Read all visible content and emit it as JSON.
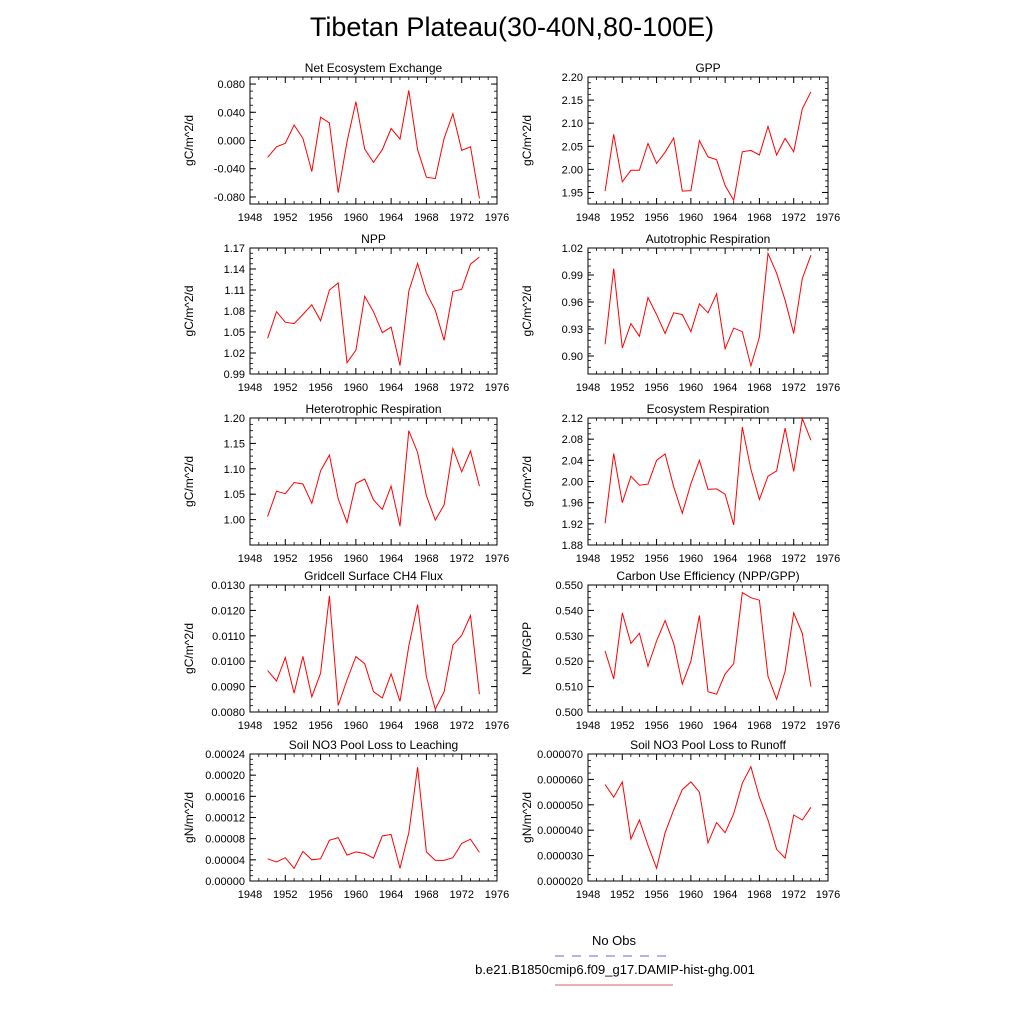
{
  "title": "Tibetan Plateau(30-40N,80-100E)",
  "legend": {
    "entries": [
      {
        "label": "No Obs",
        "color": "#6a6ad0",
        "dash": true
      },
      {
        "label": "b.e21.B1850cmip6.f09_g17.DAMIP-hist-ghg.001",
        "color": "#e06060",
        "dash": false
      }
    ]
  },
  "series_color": "#ff0000",
  "chart_data": [
    {
      "type": "line",
      "title": "Net Ecosystem Exchange",
      "ylabel": "gC/m^2/d",
      "xlim": [
        1948,
        1976
      ],
      "xticks": [
        1948,
        1952,
        1956,
        1960,
        1964,
        1968,
        1972,
        1976
      ],
      "xtick_labels": [
        "1948",
        "1952",
        "1956",
        "1960",
        "1964",
        "1968",
        "1972",
        "1976"
      ],
      "ylim": [
        -0.09,
        0.09
      ],
      "yticks": [
        -0.08,
        -0.04,
        0.0,
        0.04,
        0.08
      ],
      "ytick_labels": [
        "-0.080",
        "-0.040",
        "0.000",
        "0.040",
        "0.080"
      ],
      "x": [
        1950,
        1951,
        1952,
        1953,
        1954,
        1955,
        1956,
        1957,
        1958,
        1959,
        1960,
        1961,
        1962,
        1963,
        1964,
        1965,
        1966,
        1967,
        1968,
        1969,
        1970,
        1971,
        1972,
        1973,
        1974
      ],
      "y": [
        -0.024,
        -0.009,
        -0.004,
        0.022,
        0.003,
        -0.044,
        0.033,
        0.025,
        -0.074,
        -0.002,
        0.055,
        -0.012,
        -0.031,
        -0.013,
        0.017,
        0.002,
        0.071,
        -0.013,
        -0.052,
        -0.054,
        0.003,
        0.038,
        -0.014,
        -0.009,
        -0.082
      ]
    },
    {
      "type": "line",
      "title": "GPP",
      "ylabel": "gC/m^2/d",
      "xlim": [
        1948,
        1976
      ],
      "xticks": [
        1948,
        1952,
        1956,
        1960,
        1964,
        1968,
        1972,
        1976
      ],
      "xtick_labels": [
        "1948",
        "1952",
        "1956",
        "1960",
        "1964",
        "1968",
        "1972",
        "1976"
      ],
      "ylim": [
        1.925,
        2.2
      ],
      "yticks": [
        1.95,
        2.0,
        2.05,
        2.1,
        2.15,
        2.2
      ],
      "ytick_labels": [
        "1.95",
        "2.00",
        "2.05",
        "2.10",
        "2.15",
        "2.20"
      ],
      "x": [
        1950,
        1951,
        1952,
        1953,
        1954,
        1955,
        1956,
        1957,
        1958,
        1959,
        1960,
        1961,
        1962,
        1963,
        1964,
        1965,
        1966,
        1967,
        1968,
        1969,
        1970,
        1971,
        1972,
        1973,
        1974
      ],
      "y": [
        1.953,
        2.076,
        1.973,
        1.998,
        1.998,
        2.056,
        2.013,
        2.037,
        2.068,
        1.953,
        1.954,
        2.062,
        2.027,
        2.021,
        1.965,
        1.933,
        2.038,
        2.041,
        2.031,
        2.093,
        2.031,
        2.067,
        2.038,
        2.131,
        2.168
      ]
    },
    {
      "type": "line",
      "title": "NPP",
      "ylabel": "gC/m^2/d",
      "xlim": [
        1948,
        1976
      ],
      "xticks": [
        1948,
        1952,
        1956,
        1960,
        1964,
        1968,
        1972,
        1976
      ],
      "xtick_labels": [
        "1948",
        "1952",
        "1956",
        "1960",
        "1964",
        "1968",
        "1972",
        "1976"
      ],
      "ylim": [
        0.99,
        1.17
      ],
      "yticks": [
        0.99,
        1.02,
        1.05,
        1.08,
        1.11,
        1.14,
        1.17
      ],
      "ytick_labels": [
        "0.99",
        "1.02",
        "1.05",
        "1.08",
        "1.11",
        "1.14",
        "1.17"
      ],
      "x": [
        1950,
        1951,
        1952,
        1953,
        1954,
        1955,
        1956,
        1957,
        1958,
        1959,
        1960,
        1961,
        1962,
        1963,
        1964,
        1965,
        1966,
        1967,
        1968,
        1969,
        1970,
        1971,
        1972,
        1973,
        1974
      ],
      "y": [
        1.041,
        1.079,
        1.064,
        1.062,
        1.075,
        1.089,
        1.066,
        1.11,
        1.12,
        1.006,
        1.024,
        1.101,
        1.079,
        1.049,
        1.057,
        1.002,
        1.108,
        1.148,
        1.106,
        1.081,
        1.038,
        1.108,
        1.111,
        1.147,
        1.157
      ]
    },
    {
      "type": "line",
      "title": "Autotrophic Respiration",
      "ylabel": "gC/m^2/d",
      "xlim": [
        1948,
        1976
      ],
      "xticks": [
        1948,
        1952,
        1956,
        1960,
        1964,
        1968,
        1972,
        1976
      ],
      "xtick_labels": [
        "1948",
        "1952",
        "1956",
        "1960",
        "1964",
        "1968",
        "1972",
        "1976"
      ],
      "ylim": [
        0.88,
        1.02
      ],
      "yticks": [
        0.9,
        0.93,
        0.96,
        0.99,
        1.02
      ],
      "ytick_labels": [
        "0.90",
        "0.93",
        "0.96",
        "0.99",
        "1.02"
      ],
      "x": [
        1950,
        1951,
        1952,
        1953,
        1954,
        1955,
        1956,
        1957,
        1958,
        1959,
        1960,
        1961,
        1962,
        1963,
        1964,
        1965,
        1966,
        1967,
        1968,
        1969,
        1970,
        1971,
        1972,
        1973,
        1974
      ],
      "y": [
        0.913,
        0.997,
        0.909,
        0.936,
        0.922,
        0.965,
        0.946,
        0.925,
        0.948,
        0.946,
        0.927,
        0.958,
        0.948,
        0.969,
        0.908,
        0.931,
        0.927,
        0.889,
        0.921,
        1.014,
        0.992,
        0.962,
        0.925,
        0.986,
        1.012
      ]
    },
    {
      "type": "line",
      "title": "Heterotrophic Respiration",
      "ylabel": "gC/m^2/d",
      "xlim": [
        1948,
        1976
      ],
      "xticks": [
        1948,
        1952,
        1956,
        1960,
        1964,
        1968,
        1972,
        1976
      ],
      "xtick_labels": [
        "1948",
        "1952",
        "1956",
        "1960",
        "1964",
        "1968",
        "1972",
        "1976"
      ],
      "ylim": [
        0.95,
        1.2
      ],
      "yticks": [
        1.0,
        1.05,
        1.1,
        1.15,
        1.2
      ],
      "ytick_labels": [
        "1.00",
        "1.05",
        "1.10",
        "1.15",
        "1.20"
      ],
      "x": [
        1950,
        1951,
        1952,
        1953,
        1954,
        1955,
        1956,
        1957,
        1958,
        1959,
        1960,
        1961,
        1962,
        1963,
        1964,
        1965,
        1966,
        1967,
        1968,
        1969,
        1970,
        1971,
        1972,
        1973,
        1974
      ],
      "y": [
        1.006,
        1.056,
        1.051,
        1.073,
        1.07,
        1.032,
        1.096,
        1.127,
        1.041,
        0.994,
        1.071,
        1.08,
        1.039,
        1.02,
        1.066,
        0.987,
        1.175,
        1.132,
        1.047,
        0.999,
        1.029,
        1.14,
        1.094,
        1.135,
        1.066
      ]
    },
    {
      "type": "line",
      "title": "Ecosystem Respiration",
      "ylabel": "gC/m^2/d",
      "xlim": [
        1948,
        1976
      ],
      "xticks": [
        1948,
        1952,
        1956,
        1960,
        1964,
        1968,
        1972,
        1976
      ],
      "xtick_labels": [
        "1948",
        "1952",
        "1956",
        "1960",
        "1964",
        "1968",
        "1972",
        "1976"
      ],
      "ylim": [
        1.88,
        2.12
      ],
      "yticks": [
        1.88,
        1.92,
        1.96,
        2.0,
        2.04,
        2.08,
        2.12
      ],
      "ytick_labels": [
        "1.88",
        "1.92",
        "1.96",
        "2.00",
        "2.04",
        "2.08",
        "2.12"
      ],
      "x": [
        1950,
        1951,
        1952,
        1953,
        1954,
        1955,
        1956,
        1957,
        1958,
        1959,
        1960,
        1961,
        1962,
        1963,
        1964,
        1965,
        1966,
        1967,
        1968,
        1969,
        1970,
        1971,
        1972,
        1973,
        1974
      ],
      "y": [
        1.921,
        2.053,
        1.96,
        2.01,
        1.993,
        1.995,
        2.04,
        2.052,
        1.99,
        1.94,
        1.996,
        2.04,
        1.985,
        1.986,
        1.976,
        1.918,
        2.103,
        2.023,
        1.966,
        2.01,
        2.02,
        2.101,
        2.019,
        2.119,
        2.078
      ]
    },
    {
      "type": "line",
      "title": "Gridcell Surface CH4 Flux",
      "ylabel": "gC/m^2/d",
      "xlim": [
        1948,
        1976
      ],
      "xticks": [
        1948,
        1952,
        1956,
        1960,
        1964,
        1968,
        1972,
        1976
      ],
      "xtick_labels": [
        "1948",
        "1952",
        "1956",
        "1960",
        "1964",
        "1968",
        "1972",
        "1976"
      ],
      "ylim": [
        0.008,
        0.013
      ],
      "yticks": [
        0.008,
        0.009,
        0.01,
        0.011,
        0.012,
        0.013
      ],
      "ytick_labels": [
        "0.0080",
        "0.0090",
        "0.0100",
        "0.0110",
        "0.0120",
        "0.0130"
      ],
      "x": [
        1950,
        1951,
        1952,
        1953,
        1954,
        1955,
        1956,
        1957,
        1958,
        1959,
        1960,
        1961,
        1962,
        1963,
        1964,
        1965,
        1966,
        1967,
        1968,
        1969,
        1970,
        1971,
        1972,
        1973,
        1974
      ],
      "y": [
        0.00963,
        0.00922,
        0.01014,
        0.00874,
        0.01019,
        0.0086,
        0.00953,
        0.01257,
        0.00826,
        0.00926,
        0.01018,
        0.0099,
        0.0088,
        0.00855,
        0.0095,
        0.00842,
        0.0106,
        0.01223,
        0.00939,
        0.00811,
        0.0088,
        0.01063,
        0.01102,
        0.0118,
        0.0087
      ]
    },
    {
      "type": "line",
      "title": "Carbon Use Efficiency (NPP/GPP)",
      "ylabel": "NPP/GPP",
      "xlim": [
        1948,
        1976
      ],
      "xticks": [
        1948,
        1952,
        1956,
        1960,
        1964,
        1968,
        1972,
        1976
      ],
      "xtick_labels": [
        "1948",
        "1952",
        "1956",
        "1960",
        "1964",
        "1968",
        "1972",
        "1976"
      ],
      "ylim": [
        0.5,
        0.55
      ],
      "yticks": [
        0.5,
        0.51,
        0.52,
        0.53,
        0.54,
        0.55
      ],
      "ytick_labels": [
        "0.500",
        "0.510",
        "0.520",
        "0.530",
        "0.540",
        "0.550"
      ],
      "x": [
        1950,
        1951,
        1952,
        1953,
        1954,
        1955,
        1956,
        1957,
        1958,
        1959,
        1960,
        1961,
        1962,
        1963,
        1964,
        1965,
        1966,
        1967,
        1968,
        1969,
        1970,
        1971,
        1972,
        1973,
        1974
      ],
      "y": [
        0.524,
        0.513,
        0.539,
        0.527,
        0.531,
        0.518,
        0.528,
        0.536,
        0.527,
        0.511,
        0.52,
        0.538,
        0.508,
        0.507,
        0.515,
        0.519,
        0.547,
        0.545,
        0.544,
        0.514,
        0.505,
        0.516,
        0.539,
        0.531,
        0.51
      ]
    },
    {
      "type": "line",
      "title": "Soil NO3 Pool Loss to Leaching",
      "ylabel": "gN/m^2/d",
      "xlim": [
        1948,
        1976
      ],
      "xticks": [
        1948,
        1952,
        1956,
        1960,
        1964,
        1968,
        1972,
        1976
      ],
      "xtick_labels": [
        "1948",
        "1952",
        "1956",
        "1960",
        "1964",
        "1968",
        "1972",
        "1976"
      ],
      "ylim": [
        0,
        0.00024
      ],
      "yticks": [
        0,
        4e-05,
        8e-05,
        0.00012,
        0.00016,
        0.0002,
        0.00024
      ],
      "ytick_labels": [
        "0.00000",
        "0.00004",
        "0.00008",
        "0.00012",
        "0.00016",
        "0.00020",
        "0.00024"
      ],
      "x": [
        1950,
        1951,
        1952,
        1953,
        1954,
        1955,
        1956,
        1957,
        1958,
        1959,
        1960,
        1961,
        1962,
        1963,
        1964,
        1965,
        1966,
        1967,
        1968,
        1969,
        1970,
        1971,
        1972,
        1973,
        1974
      ],
      "y": [
        4.2e-05,
        3.6e-05,
        4.4e-05,
        2.4e-05,
        5.6e-05,
        4e-05,
        4.2e-05,
        7.7e-05,
        8.2e-05,
        4.9e-05,
        5.5e-05,
        5.2e-05,
        4.3e-05,
        8.5e-05,
        8.8e-05,
        2.4e-05,
        9.1e-05,
        0.000215,
        5.5e-05,
        3.9e-05,
        3.9e-05,
        4.4e-05,
        7.1e-05,
        7.9e-05,
        5.4e-05
      ]
    },
    {
      "type": "line",
      "title": "Soil NO3 Pool Loss to Runoff",
      "ylabel": "gN/m^2/d",
      "xlim": [
        1948,
        1976
      ],
      "xticks": [
        1948,
        1952,
        1956,
        1960,
        1964,
        1968,
        1972,
        1976
      ],
      "xtick_labels": [
        "1948",
        "1952",
        "1956",
        "1960",
        "1964",
        "1968",
        "1972",
        "1976"
      ],
      "ylim": [
        2e-05,
        7e-05
      ],
      "yticks": [
        2e-05,
        3e-05,
        4e-05,
        5e-05,
        6e-05,
        7e-05
      ],
      "ytick_labels": [
        "0.000020",
        "0.000030",
        "0.000040",
        "0.000050",
        "0.000060",
        "0.000070"
      ],
      "x": [
        1950,
        1951,
        1952,
        1953,
        1954,
        1955,
        1956,
        1957,
        1958,
        1959,
        1960,
        1961,
        1962,
        1963,
        1964,
        1965,
        1966,
        1967,
        1968,
        1969,
        1970,
        1971,
        1972,
        1973,
        1974
      ],
      "y": [
        5.8e-05,
        5.3e-05,
        5.9e-05,
        3.65e-05,
        4.4e-05,
        3.4e-05,
        2.5e-05,
        3.9e-05,
        4.8e-05,
        5.6e-05,
        5.9e-05,
        5.5e-05,
        3.5e-05,
        4.3e-05,
        3.9e-05,
        4.65e-05,
        5.85e-05,
        6.5e-05,
        5.3e-05,
        4.4e-05,
        3.25e-05,
        2.9e-05,
        4.6e-05,
        4.4e-05,
        4.9e-05
      ]
    }
  ]
}
